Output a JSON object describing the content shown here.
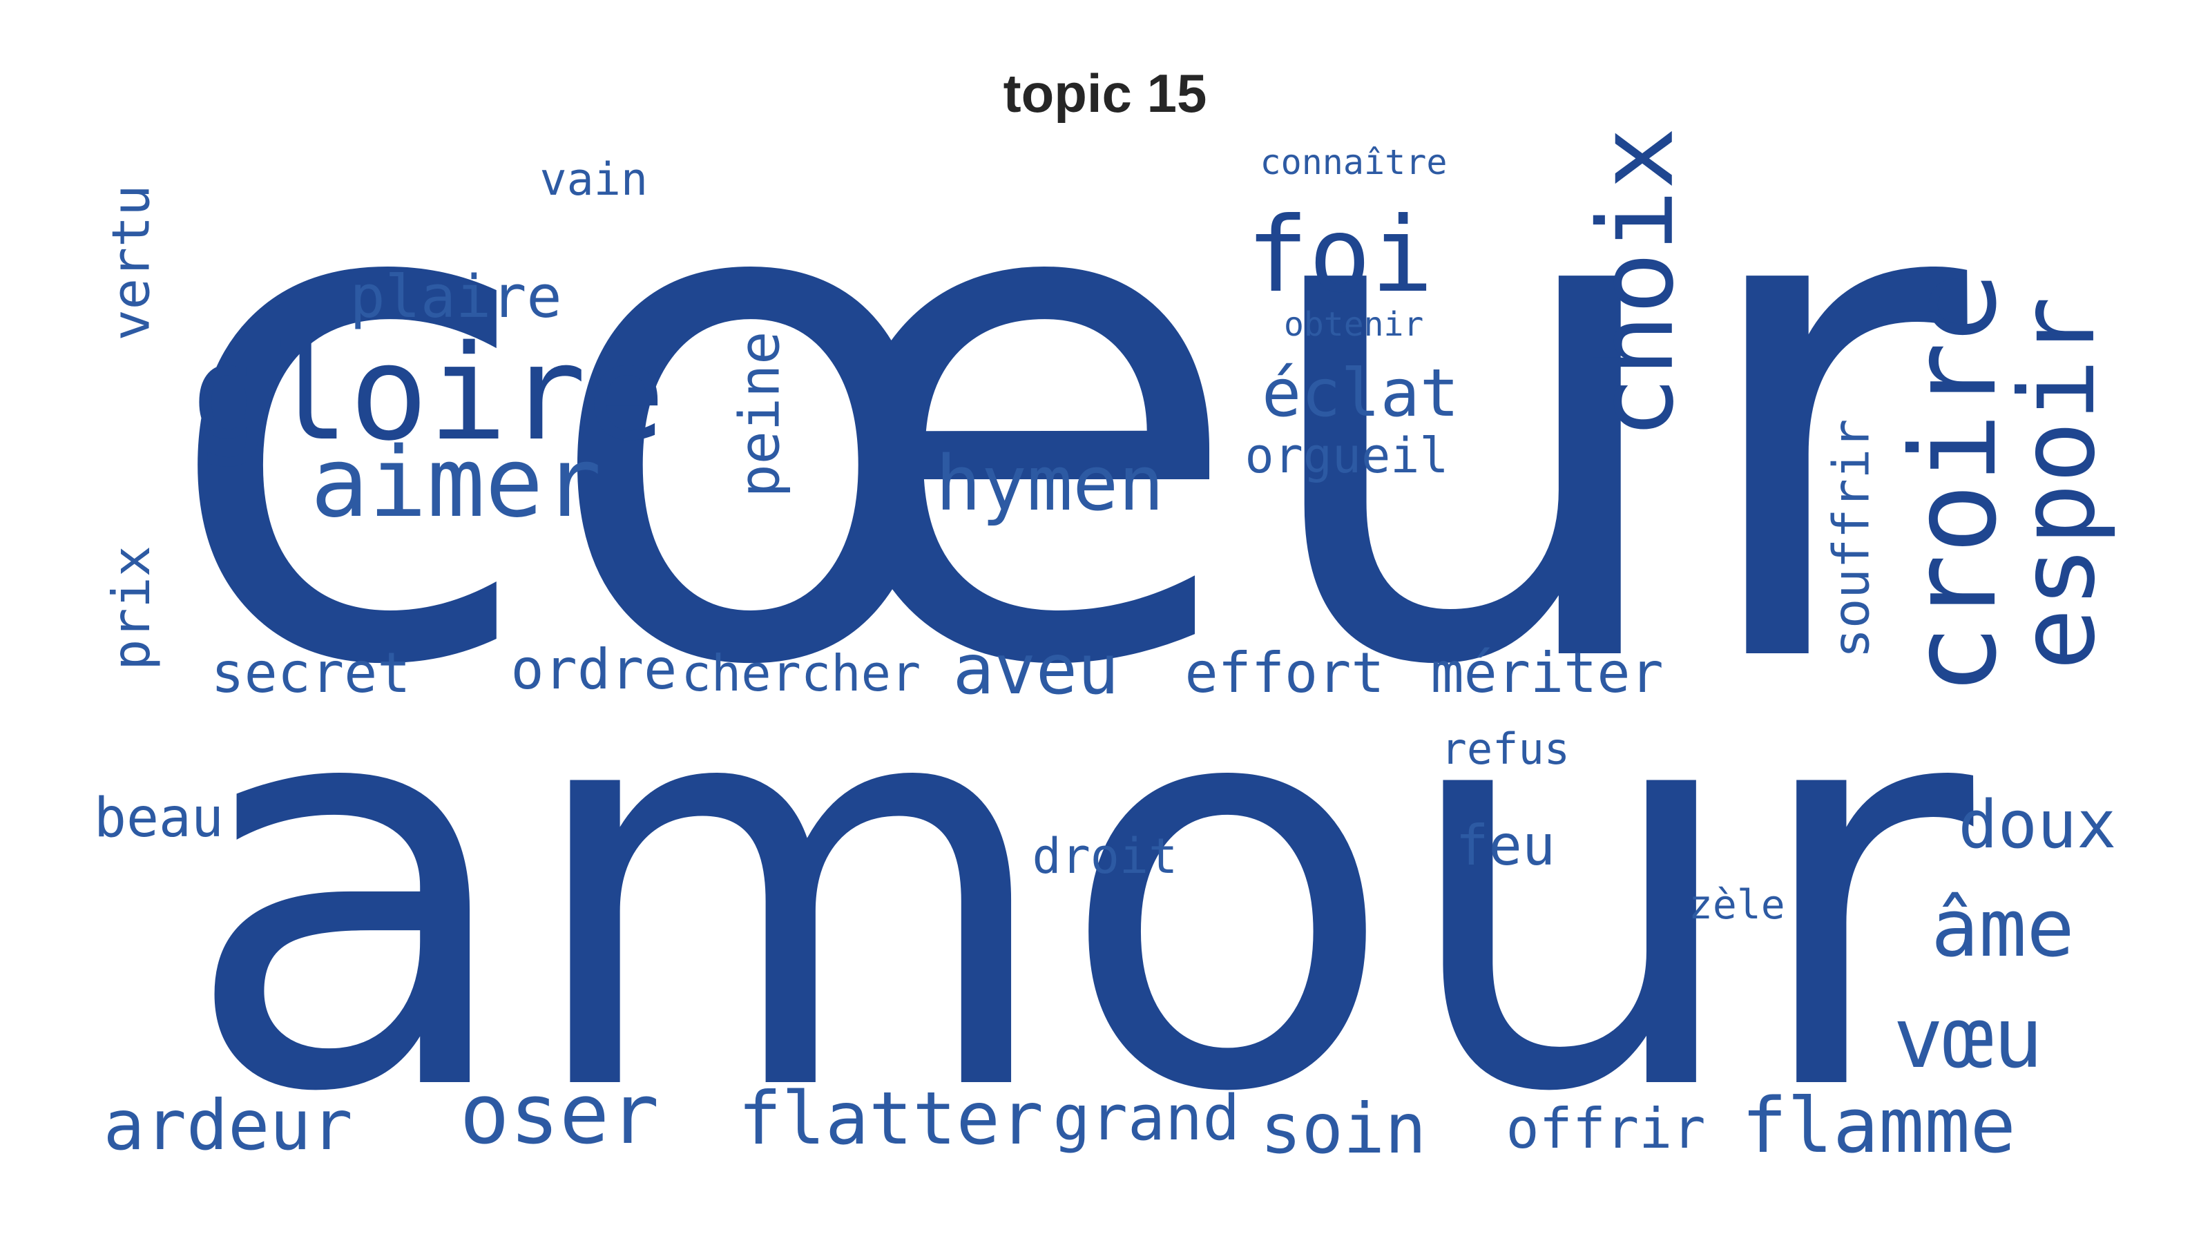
{
  "title": "topic 15",
  "colors": {
    "word": "#1f4690",
    "word_light": "#2d5aa3",
    "title": "#262626",
    "background": "#ffffff"
  },
  "words": [
    "cœur",
    "amour",
    "gloire",
    "aimer",
    "foi",
    "choix",
    "croire",
    "espoir",
    "hymen",
    "éclat",
    "orgueil",
    "peine",
    "plaire",
    "vain",
    "connaître",
    "obtenir",
    "vertu",
    "prix",
    "secret",
    "ordre",
    "chercher",
    "aveu",
    "effort",
    "mériter",
    "souffrir",
    "refus",
    "beau",
    "droit",
    "feu",
    "doux",
    "zèle",
    "âme",
    "vœu",
    "ardeur",
    "oser",
    "flatter",
    "grand",
    "soin",
    "offrir",
    "flamme"
  ]
}
